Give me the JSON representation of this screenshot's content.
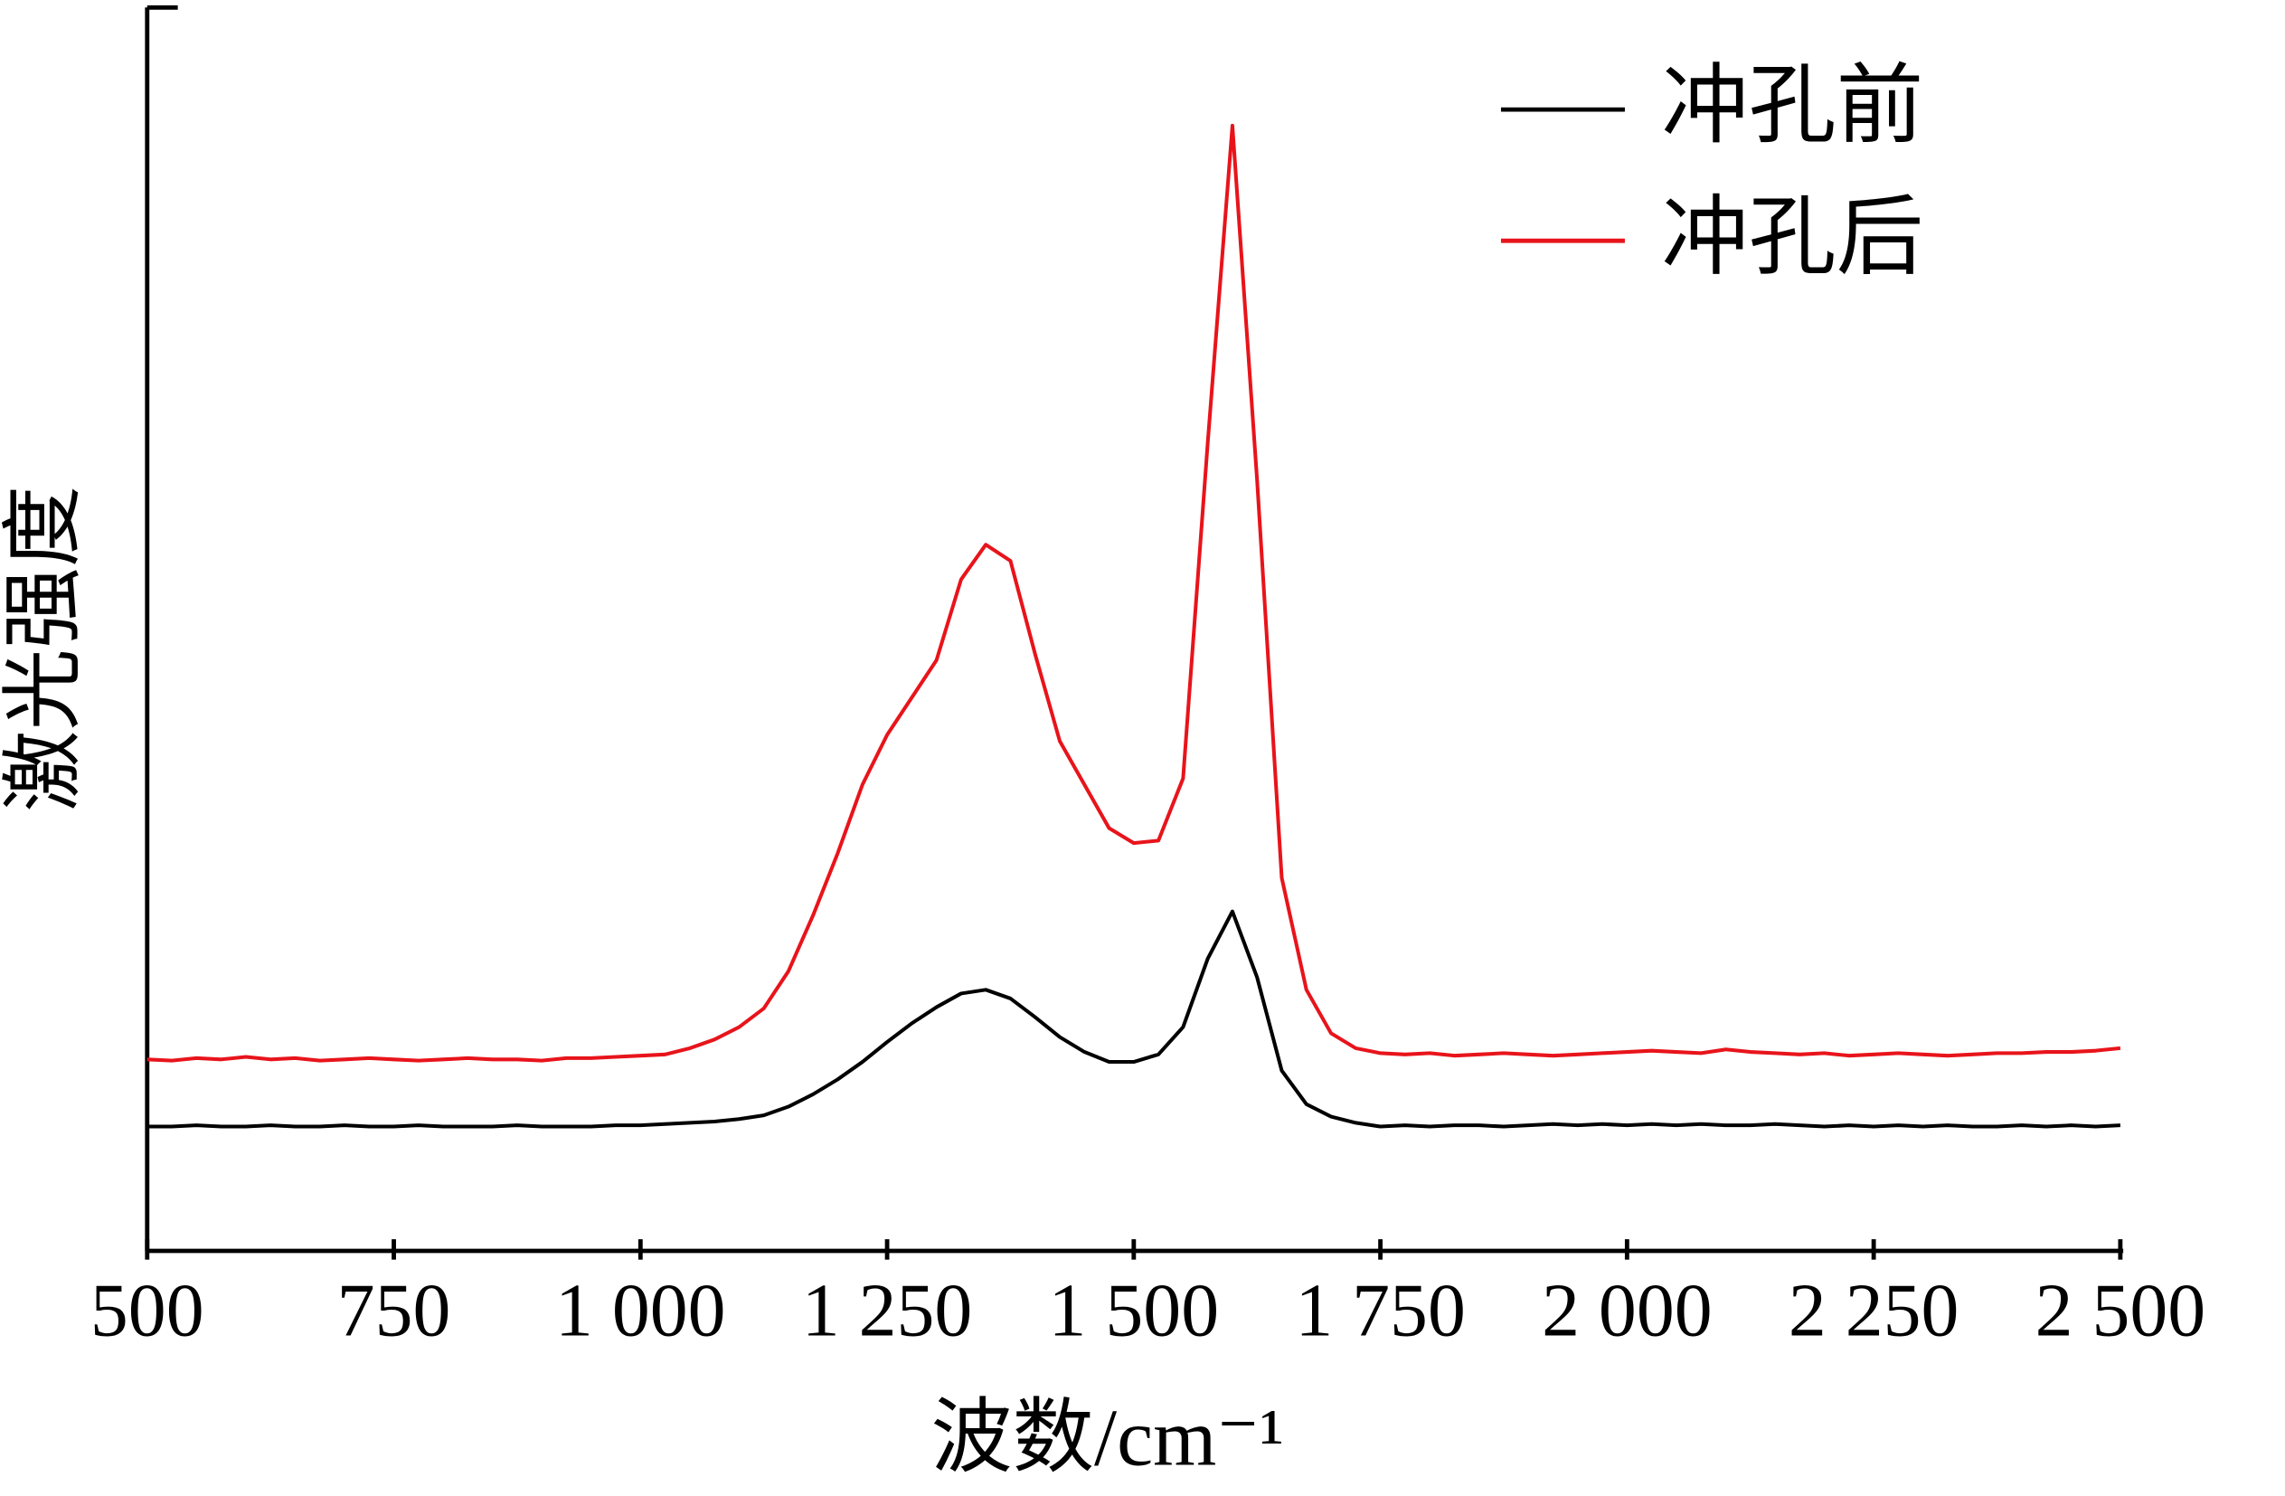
{
  "chart_data": {
    "type": "line",
    "xlabel": "波数/cm⁻¹",
    "ylabel": "激光强度",
    "x": [
      500,
      525,
      550,
      575,
      600,
      625,
      650,
      675,
      700,
      725,
      750,
      775,
      800,
      825,
      850,
      875,
      900,
      925,
      950,
      975,
      1000,
      1025,
      1050,
      1075,
      1100,
      1125,
      1150,
      1175,
      1200,
      1225,
      1250,
      1275,
      1300,
      1325,
      1350,
      1375,
      1400,
      1425,
      1450,
      1475,
      1500,
      1525,
      1550,
      1575,
      1600,
      1625,
      1650,
      1675,
      1700,
      1725,
      1750,
      1775,
      1800,
      1825,
      1850,
      1875,
      1900,
      1925,
      1950,
      1975,
      2000,
      2025,
      2050,
      2075,
      2100,
      2125,
      2150,
      2175,
      2200,
      2225,
      2250,
      2275,
      2300,
      2325,
      2350,
      2375,
      2400,
      2425,
      2450,
      2475,
      2500
    ],
    "series": [
      {
        "name": "冲孔前",
        "color": "#000000",
        "values": [
          10.0,
          10.0,
          10.1,
          10.0,
          10.0,
          10.1,
          10.0,
          10.0,
          10.1,
          10.0,
          10.0,
          10.1,
          10.0,
          10.0,
          10.0,
          10.1,
          10.0,
          10.0,
          10.0,
          10.1,
          10.1,
          10.2,
          10.3,
          10.4,
          10.6,
          10.9,
          11.6,
          12.6,
          13.8,
          15.2,
          16.8,
          18.3,
          19.6,
          20.7,
          21.0,
          20.3,
          18.8,
          17.2,
          16.0,
          15.2,
          15.2,
          15.8,
          18.0,
          23.5,
          27.3,
          22.0,
          14.5,
          11.8,
          10.8,
          10.3,
          10.0,
          10.1,
          10.0,
          10.1,
          10.1,
          10.0,
          10.1,
          10.2,
          10.1,
          10.2,
          10.1,
          10.2,
          10.1,
          10.2,
          10.1,
          10.1,
          10.2,
          10.1,
          10.0,
          10.1,
          10.0,
          10.1,
          10.0,
          10.1,
          10.0,
          10.0,
          10.1,
          10.0,
          10.1,
          10.0,
          10.1
        ]
      },
      {
        "name": "冲孔后",
        "color": "#e8141b",
        "values": [
          15.4,
          15.3,
          15.5,
          15.4,
          15.6,
          15.4,
          15.5,
          15.3,
          15.4,
          15.5,
          15.4,
          15.3,
          15.4,
          15.5,
          15.4,
          15.4,
          15.3,
          15.5,
          15.5,
          15.6,
          15.7,
          15.8,
          16.3,
          17.0,
          18.0,
          19.5,
          22.5,
          27.0,
          32.0,
          37.5,
          41.5,
          44.5,
          47.5,
          54.0,
          56.8,
          55.5,
          48.0,
          41.0,
          37.5,
          34.0,
          32.8,
          33.0,
          38.0,
          65.0,
          90.5,
          62.0,
          30.0,
          21.0,
          17.5,
          16.3,
          15.9,
          15.8,
          15.9,
          15.7,
          15.8,
          15.9,
          15.8,
          15.7,
          15.8,
          15.9,
          16.0,
          16.1,
          16.0,
          15.9,
          16.2,
          16.0,
          15.9,
          15.8,
          15.9,
          15.7,
          15.8,
          15.9,
          15.8,
          15.7,
          15.8,
          15.9,
          15.9,
          16.0,
          16.0,
          16.1,
          16.3
        ]
      }
    ],
    "xlim": [
      500,
      2500
    ],
    "ylim": [
      0,
      100
    ],
    "xticks": [
      500,
      750,
      {
        "value": 1000,
        "label": "1 000"
      },
      {
        "value": 1250,
        "label": "1 250"
      },
      {
        "value": 1500,
        "label": "1 500"
      },
      {
        "value": 1750,
        "label": "1 750"
      },
      {
        "value": 2000,
        "label": "2 000"
      },
      {
        "value": 2250,
        "label": "2 250"
      },
      {
        "value": 2500,
        "label": "2 500"
      }
    ],
    "legend": "upper right",
    "grid": false
  }
}
